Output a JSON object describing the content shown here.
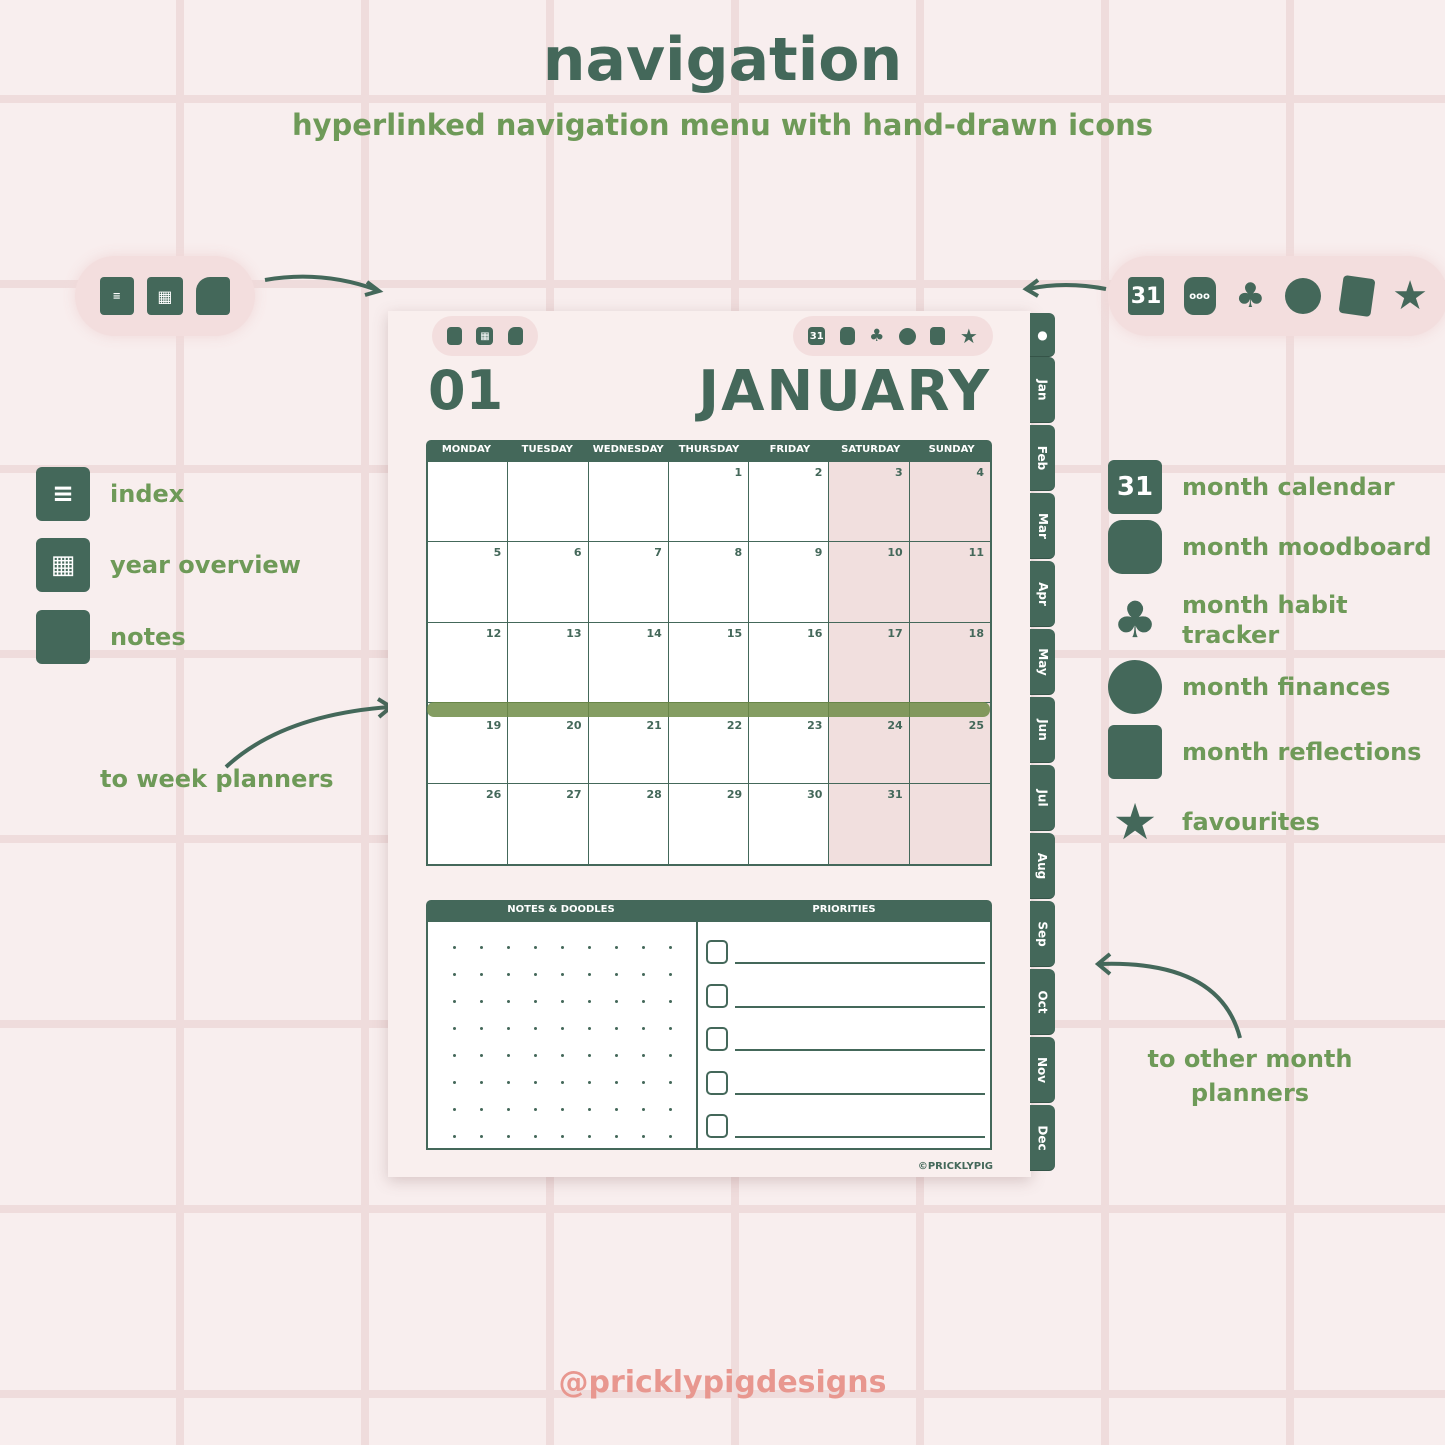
{
  "header": {
    "title": "navigation",
    "subtitle": "hyperlinked navigation menu with hand-drawn icons"
  },
  "left_legend": [
    {
      "icon": "index-notebook-icon",
      "label": "index"
    },
    {
      "icon": "calendar-grid-icon",
      "label": "year overview"
    },
    {
      "icon": "note-page-icon",
      "label": "notes"
    }
  ],
  "right_legend": [
    {
      "icon": "calendar-31-icon",
      "glyph": "31",
      "label": "month calendar"
    },
    {
      "icon": "jar-icon",
      "label": "month moodboard"
    },
    {
      "icon": "plant-pot-icon",
      "label": "month habit tracker"
    },
    {
      "icon": "coin-icon",
      "label": "month finances"
    },
    {
      "icon": "book-icon",
      "label": "month reflections"
    },
    {
      "icon": "star-icon",
      "glyph": "★",
      "label": "favourites"
    }
  ],
  "annotations": {
    "week": "to week planners",
    "months": "to other month planners"
  },
  "planner": {
    "month_number": "01",
    "month_name": "JANUARY",
    "weekdays": [
      "MONDAY",
      "TUESDAY",
      "WEDNESDAY",
      "THURSDAY",
      "FRIDAY",
      "SATURDAY",
      "SUNDAY"
    ],
    "weeks": [
      [
        "",
        "",
        "",
        "1",
        "2",
        "3",
        "4"
      ],
      [
        "5",
        "6",
        "7",
        "8",
        "9",
        "10",
        "11"
      ],
      [
        "12",
        "13",
        "14",
        "15",
        "16",
        "17",
        "18"
      ],
      [
        "19",
        "20",
        "21",
        "22",
        "23",
        "24",
        "25"
      ],
      [
        "26",
        "27",
        "28",
        "29",
        "30",
        "31",
        ""
      ]
    ],
    "highlighted_week": 3,
    "notes_label": "NOTES & DOODLES",
    "priorities_label": "PRIORITIES",
    "priority_count": 5,
    "copyright": "©PRICKLYPIG"
  },
  "tabs": [
    "Jan",
    "Feb",
    "Mar",
    "Apr",
    "May",
    "Jun",
    "Jul",
    "Aug",
    "Sep",
    "Oct",
    "Nov",
    "Dec"
  ],
  "footer": {
    "handle": "@pricklypigdesigns"
  },
  "colors": {
    "primary": "#44685a",
    "accent": "#6e9a58",
    "highlight": "#8a9e5e",
    "weekend": "#f1dfde",
    "handle": "#e8978f"
  }
}
